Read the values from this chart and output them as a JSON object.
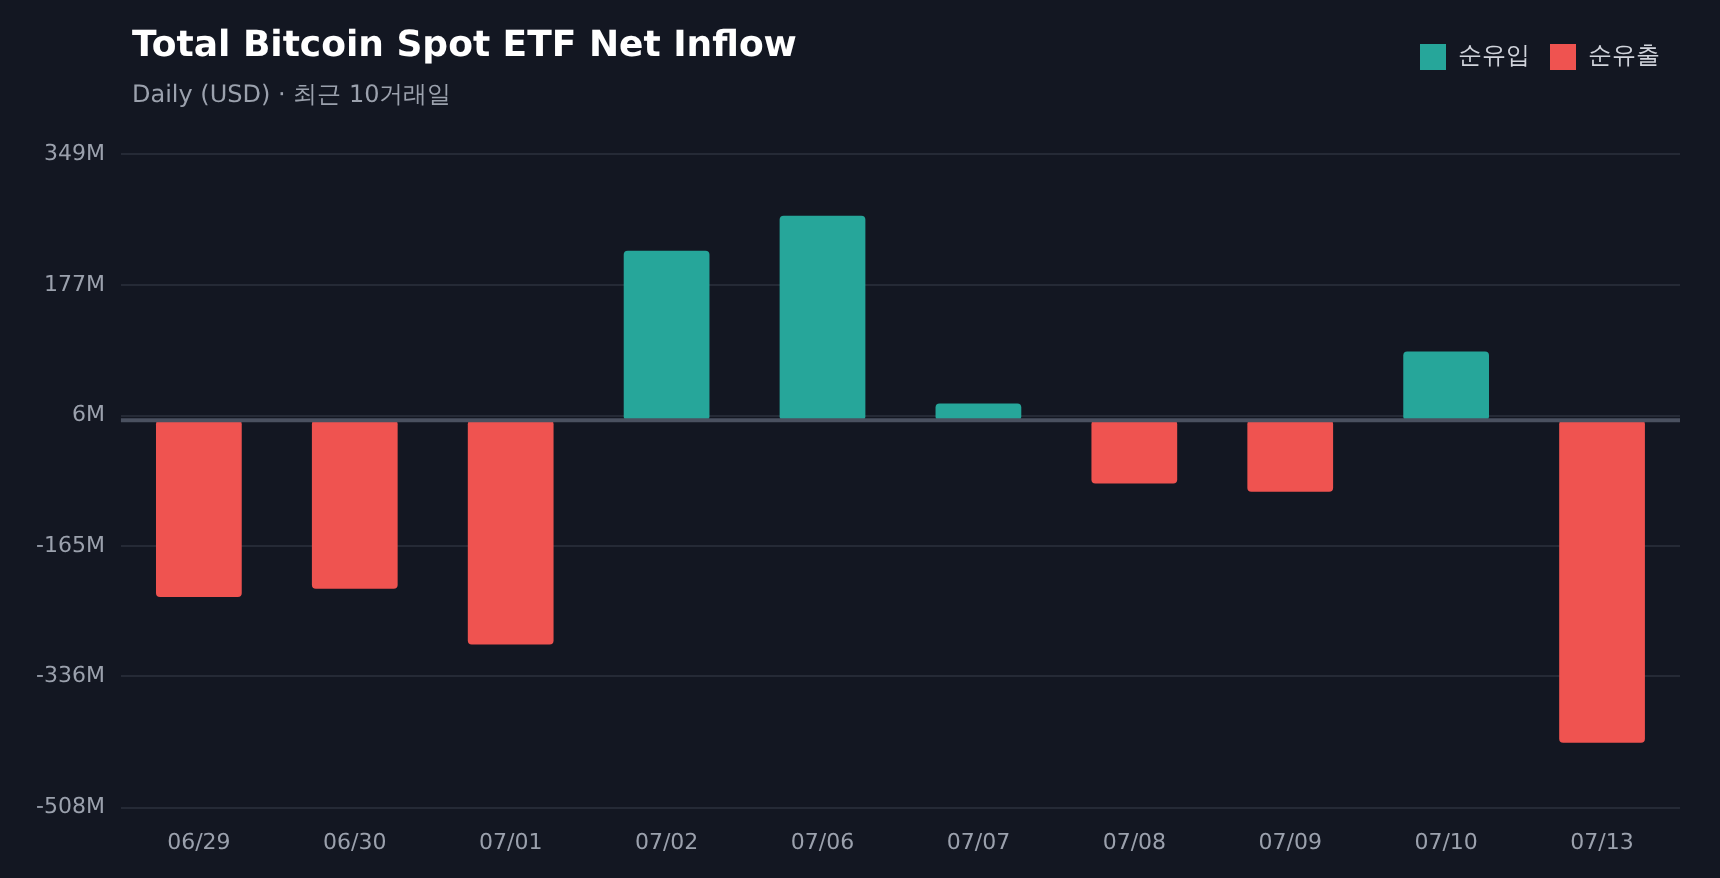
{
  "chart_data": {
    "type": "bar",
    "title": "Total Bitcoin Spot ETF Net Inflow",
    "subtitle": "Daily (USD) · 최근 10거래일",
    "categories": [
      "06/29",
      "06/30",
      "07/01",
      "07/02",
      "07/06",
      "07/07",
      "07/08",
      "07/09",
      "07/10",
      "07/13"
    ],
    "series": [
      {
        "name": "순유입",
        "color": "#26a69a",
        "values": [
          null,
          null,
          null,
          222,
          268,
          22,
          null,
          null,
          90,
          null
        ]
      },
      {
        "name": "순유출",
        "color": "#ef5350",
        "values": [
          -232,
          -221,
          -294,
          null,
          null,
          null,
          -83,
          -94,
          null,
          -423
        ]
      }
    ],
    "ylim": [
      -508,
      349
    ],
    "yticks": [
      {
        "value": 349,
        "label": "349M"
      },
      {
        "value": 177,
        "label": "177M"
      },
      {
        "value": 6,
        "label": "6M"
      },
      {
        "value": -165,
        "label": "-165M"
      },
      {
        "value": -336,
        "label": "-336M"
      },
      {
        "value": -508,
        "label": "-508M"
      }
    ],
    "ref_lines": [
      {
        "axis": "y",
        "value": 0,
        "color": "#4a5160"
      }
    ],
    "grid": "y",
    "legend": "top right"
  }
}
